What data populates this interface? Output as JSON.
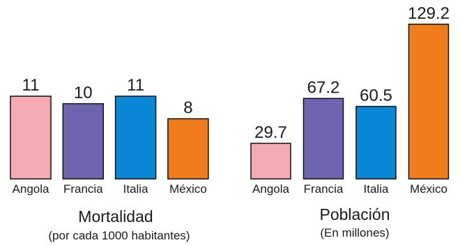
{
  "colors": {
    "Angola": "#f5a9b0",
    "Francia": "#6e64b0",
    "Italia": "#0a87d6",
    "México": "#f07c1c",
    "outline": "#111111"
  },
  "chart_data": [
    {
      "type": "bar",
      "title": "Mortalidad",
      "subtitle": "(por cada 1000 habitantes)",
      "categories": [
        "Angola",
        "Francia",
        "Italia",
        "México"
      ],
      "values": [
        11,
        10,
        11,
        8
      ],
      "value_labels": [
        "11",
        "10",
        "11",
        "8"
      ],
      "xlabel": "",
      "ylabel": "",
      "grid": false
    },
    {
      "type": "bar",
      "title": "Población",
      "subtitle": "(En millones)",
      "categories": [
        "Angola",
        "Francia",
        "Italia",
        "México"
      ],
      "values": [
        29.7,
        67.2,
        60.5,
        129.2
      ],
      "value_labels": [
        "29.7",
        "67.2",
        "60.5",
        "129.2"
      ],
      "xlabel": "",
      "ylabel": "",
      "grid": false
    }
  ]
}
